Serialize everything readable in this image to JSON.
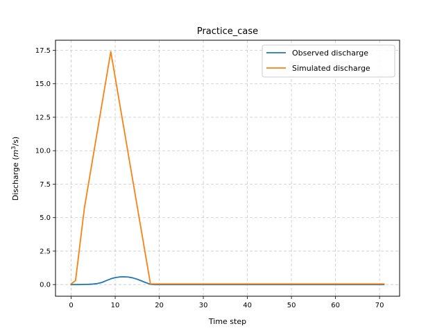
{
  "chart_data": {
    "type": "line",
    "title": "Practice_case",
    "xlabel": "Time step",
    "ylabel_main": "Discharge (",
    "ylabel_math": "m",
    "ylabel_sup": "3",
    "ylabel_tail": "/s)",
    "xlim": [
      -3.55,
      74.55
    ],
    "ylim": [
      -0.87,
      18.25
    ],
    "xticks": [
      0,
      10,
      20,
      30,
      40,
      50,
      60,
      70
    ],
    "xtick_labels": [
      "0",
      "10",
      "20",
      "30",
      "40",
      "50",
      "60",
      "70"
    ],
    "yticks": [
      0.0,
      2.5,
      5.0,
      7.5,
      10.0,
      12.5,
      15.0,
      17.5
    ],
    "ytick_labels": [
      "0.0",
      "2.5",
      "5.0",
      "7.5",
      "10.0",
      "12.5",
      "15.0",
      "17.5"
    ],
    "grid": true,
    "legend_position": "upper right",
    "series": [
      {
        "name": "Observed discharge",
        "color": "#1f77b4",
        "x": [
          0,
          1,
          2,
          3,
          4,
          5,
          6,
          7,
          8,
          9,
          10,
          11,
          12,
          13,
          14,
          15,
          16,
          17,
          18,
          19,
          20,
          30,
          40,
          50,
          60,
          71
        ],
        "y": [
          0,
          0,
          0,
          0.01,
          0.02,
          0.04,
          0.08,
          0.16,
          0.3,
          0.43,
          0.52,
          0.57,
          0.58,
          0.56,
          0.5,
          0.4,
          0.27,
          0.14,
          0.02,
          0,
          0,
          0,
          0,
          0,
          0,
          0
        ]
      },
      {
        "name": "Simulated discharge",
        "color": "#ff7f0e",
        "x": [
          0,
          1,
          3,
          9,
          18,
          19,
          71
        ],
        "y": [
          0.05,
          0.3,
          5.7,
          17.4,
          0.05,
          0.05,
          0.05
        ]
      }
    ]
  }
}
